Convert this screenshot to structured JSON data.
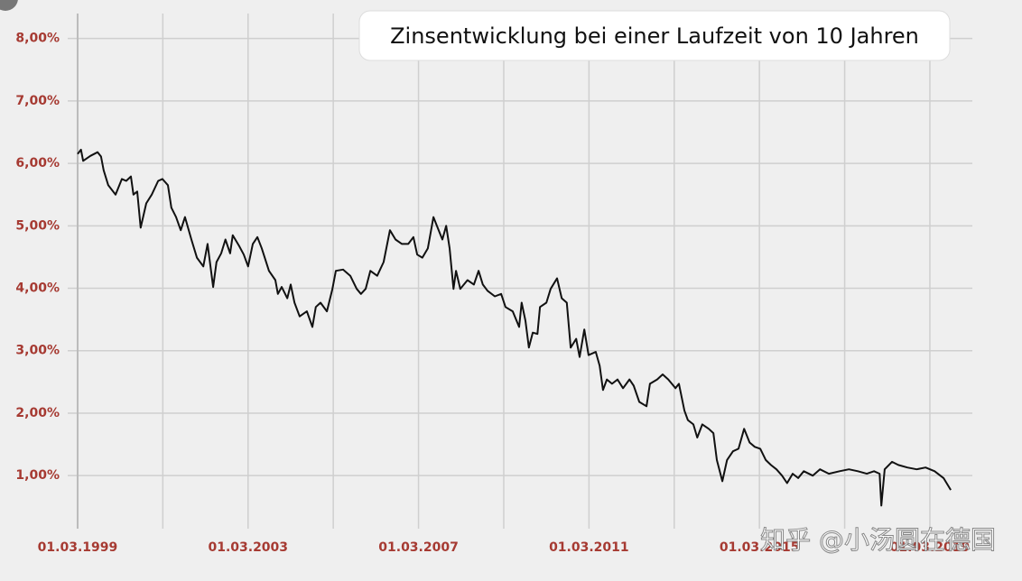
{
  "chart_data": {
    "type": "line",
    "title": "Zinsentwicklung bei einer Laufzeit von 10 Jahren",
    "watermark": "知乎 @小汤圆在德国",
    "series": [
      {
        "color": "#111111",
        "x": [
          1999.16,
          1999.24,
          1999.29,
          1999.46,
          1999.63,
          1999.71,
          1999.77,
          1999.88,
          2000.05,
          2000.2,
          2000.3,
          2000.41,
          2000.47,
          2000.56,
          2000.64,
          2000.77,
          2000.9,
          2001.05,
          2001.15,
          2001.28,
          2001.36,
          2001.47,
          2001.58,
          2001.68,
          2001.83,
          2001.96,
          2002.11,
          2002.21,
          2002.34,
          2002.42,
          2002.53,
          2002.63,
          2002.74,
          2002.8,
          2002.95,
          2003.06,
          2003.16,
          2003.27,
          2003.38,
          2003.48,
          2003.65,
          2003.8,
          2003.86,
          2003.95,
          2004.08,
          2004.16,
          2004.25,
          2004.37,
          2004.54,
          2004.67,
          2004.75,
          2004.86,
          2005.01,
          2005.14,
          2005.22,
          2005.39,
          2005.56,
          2005.71,
          2005.81,
          2005.92,
          2006.03,
          2006.19,
          2006.34,
          2006.49,
          2006.62,
          2006.77,
          2006.92,
          2007.04,
          2007.13,
          2007.25,
          2007.38,
          2007.51,
          2007.59,
          2007.72,
          2007.81,
          2007.89,
          2007.98,
          2008.04,
          2008.14,
          2008.31,
          2008.46,
          2008.57,
          2008.67,
          2008.78,
          2008.95,
          2009.1,
          2009.2,
          2009.37,
          2009.52,
          2009.58,
          2009.67,
          2009.75,
          2009.84,
          2009.95,
          2010.01,
          2010.16,
          2010.26,
          2010.41,
          2010.52,
          2010.64,
          2010.73,
          2010.86,
          2010.94,
          2011.05,
          2011.15,
          2011.32,
          2011.41,
          2011.49,
          2011.58,
          2011.7,
          2011.83,
          2011.96,
          2012.11,
          2012.21,
          2012.34,
          2012.51,
          2012.59,
          2012.76,
          2012.89,
          2013.02,
          2013.19,
          2013.27,
          2013.4,
          2013.48,
          2013.61,
          2013.7,
          2013.82,
          2013.97,
          2014.08,
          2014.16,
          2014.29,
          2014.4,
          2014.54,
          2014.67,
          2014.8,
          2014.93,
          2015.05,
          2015.18,
          2015.31,
          2015.43,
          2015.56,
          2015.69,
          2015.81,
          2015.94,
          2016.07,
          2016.2,
          2016.41,
          2016.58,
          2016.79,
          2017.04,
          2017.26,
          2017.47,
          2017.68,
          2017.85,
          2017.98,
          2018.02,
          2018.1,
          2018.27,
          2018.42,
          2018.63,
          2018.85,
          2019.06,
          2019.27,
          2019.48,
          2019.65
        ],
        "values": [
          6.15,
          6.22,
          6.04,
          6.12,
          6.18,
          6.11,
          5.89,
          5.65,
          5.5,
          5.75,
          5.72,
          5.79,
          5.5,
          5.55,
          4.97,
          5.36,
          5.5,
          5.72,
          5.75,
          5.65,
          5.29,
          5.14,
          4.93,
          5.14,
          4.78,
          4.49,
          4.35,
          4.71,
          4.02,
          4.42,
          4.56,
          4.78,
          4.56,
          4.85,
          4.68,
          4.54,
          4.35,
          4.71,
          4.82,
          4.64,
          4.28,
          4.13,
          3.91,
          4.02,
          3.84,
          4.06,
          3.77,
          3.55,
          3.63,
          3.38,
          3.7,
          3.77,
          3.63,
          3.99,
          4.28,
          4.3,
          4.2,
          3.99,
          3.91,
          3.99,
          4.28,
          4.2,
          4.42,
          4.93,
          4.78,
          4.71,
          4.71,
          4.82,
          4.54,
          4.49,
          4.64,
          5.14,
          5.0,
          4.78,
          5.0,
          4.64,
          3.99,
          4.28,
          3.99,
          4.13,
          4.06,
          4.28,
          4.06,
          3.96,
          3.87,
          3.91,
          3.7,
          3.63,
          3.38,
          3.77,
          3.48,
          3.05,
          3.29,
          3.27,
          3.7,
          3.77,
          3.99,
          4.16,
          3.84,
          3.77,
          3.05,
          3.19,
          2.9,
          3.34,
          2.93,
          2.98,
          2.76,
          2.37,
          2.54,
          2.47,
          2.54,
          2.4,
          2.54,
          2.44,
          2.18,
          2.11,
          2.47,
          2.54,
          2.62,
          2.54,
          2.4,
          2.47,
          2.04,
          1.89,
          1.82,
          1.61,
          1.82,
          1.75,
          1.68,
          1.25,
          0.91,
          1.25,
          1.39,
          1.43,
          1.75,
          1.53,
          1.46,
          1.43,
          1.25,
          1.17,
          1.1,
          1.0,
          0.88,
          1.03,
          0.96,
          1.07,
          1.0,
          1.1,
          1.03,
          1.07,
          1.1,
          1.07,
          1.03,
          1.07,
          1.03,
          0.52,
          1.1,
          1.22,
          1.17,
          1.13,
          1.1,
          1.13,
          1.07,
          0.96,
          0.77
        ]
      }
    ],
    "xlim": [
      1998.61,
      2020.22
    ],
    "ylim": [
      0.15,
      8.4
    ],
    "xticks": [
      {
        "value": 1999.16,
        "label": "01.03.1999"
      },
      {
        "value": 2003.16,
        "label": "01.03.2003"
      },
      {
        "value": 2007.16,
        "label": "01.03.2007"
      },
      {
        "value": 2011.16,
        "label": "01.03.2011"
      },
      {
        "value": 2015.16,
        "label": "01.03.2015"
      },
      {
        "value": 2019.16,
        "label": "01.03.2019"
      }
    ],
    "xgrid": [
      2001.16,
      2005.16,
      2009.16,
      2013.16,
      2017.16
    ],
    "yticks": [
      {
        "value": 1,
        "label": "1,00%"
      },
      {
        "value": 2,
        "label": "2,00%"
      },
      {
        "value": 3,
        "label": "3,00%"
      },
      {
        "value": 4,
        "label": "4,00%"
      },
      {
        "value": 5,
        "label": "5,00%"
      },
      {
        "value": 6,
        "label": "6,00%"
      },
      {
        "value": 7,
        "label": "7,00%"
      },
      {
        "value": 8,
        "label": "8,00%"
      }
    ],
    "grid": true
  }
}
